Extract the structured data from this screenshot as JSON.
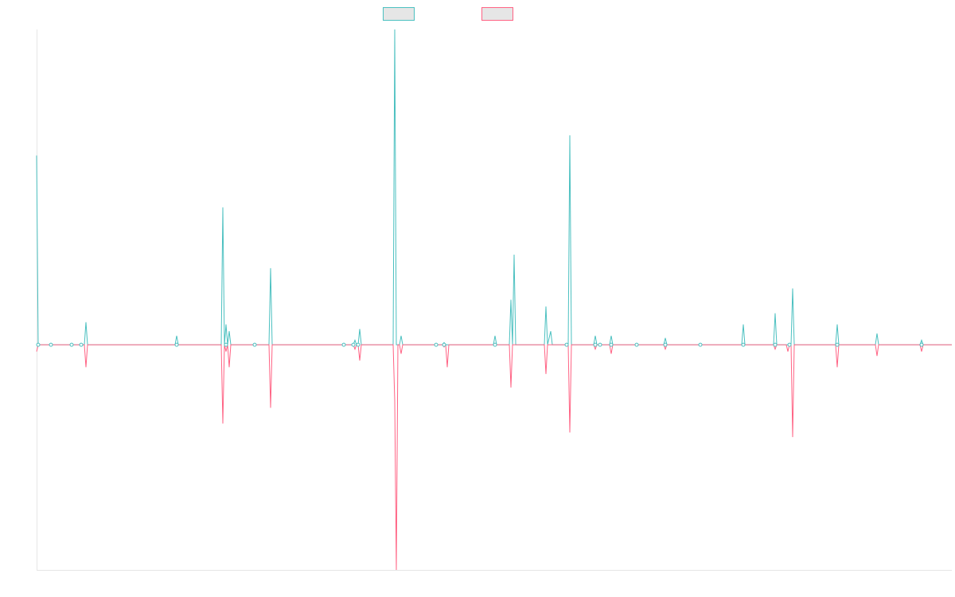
{
  "chart_data": {
    "type": "line",
    "title": "",
    "xlabel": "",
    "ylabel": "",
    "grid": false,
    "legend_placement": "top-center",
    "ylim": [
      -100,
      140
    ],
    "x_range": [
      0,
      1150
    ],
    "series": [
      {
        "color": "#4bc0c0",
        "legend_fill": "#e6e6e6",
        "points": [
          [
            0,
            84
          ],
          [
            2,
            0
          ],
          [
            18,
            0
          ],
          [
            44,
            0
          ],
          [
            56,
            0
          ],
          [
            60,
            0
          ],
          [
            62,
            10
          ],
          [
            64,
            0
          ],
          [
            174,
            0
          ],
          [
            176,
            4
          ],
          [
            178,
            0
          ],
          [
            232,
            0
          ],
          [
            234,
            61
          ],
          [
            236,
            0
          ],
          [
            238,
            9
          ],
          [
            240,
            0
          ],
          [
            242,
            6
          ],
          [
            244,
            0
          ],
          [
            272,
            0
          ],
          [
            274,
            0
          ],
          [
            292,
            0
          ],
          [
            294,
            34
          ],
          [
            296,
            0
          ],
          [
            384,
            0
          ],
          [
            386,
            0
          ],
          [
            398,
            0
          ],
          [
            400,
            2
          ],
          [
            402,
            0
          ],
          [
            404,
            0
          ],
          [
            406,
            7
          ],
          [
            408,
            0
          ],
          [
            448,
            0
          ],
          [
            450,
            140
          ],
          [
            452,
            0
          ],
          [
            454,
            0
          ],
          [
            456,
            0
          ],
          [
            458,
            4
          ],
          [
            460,
            0
          ],
          [
            500,
            0
          ],
          [
            502,
            0
          ],
          [
            510,
            0
          ],
          [
            512,
            1
          ],
          [
            514,
            0
          ],
          [
            516,
            0
          ],
          [
            574,
            0
          ],
          [
            576,
            4
          ],
          [
            578,
            0
          ],
          [
            594,
            0
          ],
          [
            596,
            20
          ],
          [
            598,
            0
          ],
          [
            600,
            40
          ],
          [
            602,
            0
          ],
          [
            638,
            0
          ],
          [
            640,
            17
          ],
          [
            642,
            0
          ],
          [
            646,
            6
          ],
          [
            648,
            0
          ],
          [
            664,
            0
          ],
          [
            666,
            0
          ],
          [
            668,
            0
          ],
          [
            670,
            93
          ],
          [
            672,
            0
          ],
          [
            700,
            0
          ],
          [
            702,
            4
          ],
          [
            704,
            0
          ],
          [
            706,
            0
          ],
          [
            708,
            0
          ],
          [
            720,
            0
          ],
          [
            722,
            4
          ],
          [
            724,
            0
          ],
          [
            752,
            0
          ],
          [
            754,
            0
          ],
          [
            788,
            0
          ],
          [
            790,
            3
          ],
          [
            792,
            0
          ],
          [
            834,
            0
          ],
          [
            886,
            0
          ],
          [
            888,
            9
          ],
          [
            890,
            0
          ],
          [
            926,
            0
          ],
          [
            928,
            14
          ],
          [
            930,
            0
          ],
          [
            942,
            0
          ],
          [
            944,
            0
          ],
          [
            946,
            0
          ],
          [
            948,
            0
          ],
          [
            950,
            25
          ],
          [
            952,
            0
          ],
          [
            1004,
            0
          ],
          [
            1006,
            9
          ],
          [
            1008,
            0
          ],
          [
            1054,
            0
          ],
          [
            1056,
            5
          ],
          [
            1058,
            0
          ],
          [
            1110,
            0
          ],
          [
            1112,
            2
          ],
          [
            1114,
            0
          ],
          [
            1150,
            0
          ]
        ],
        "markers": [
          2,
          18,
          44,
          56,
          176,
          238,
          274,
          386,
          398,
          404,
          502,
          512,
          576,
          666,
          702,
          708,
          722,
          754,
          790,
          834,
          888,
          928,
          946,
          1006,
          1112
        ]
      },
      {
        "color": "#ff6384",
        "legend_fill": "#e6e6e6",
        "points": [
          [
            0,
            -3
          ],
          [
            2,
            0
          ],
          [
            18,
            0
          ],
          [
            44,
            0
          ],
          [
            56,
            0
          ],
          [
            60,
            0
          ],
          [
            62,
            -10
          ],
          [
            64,
            0
          ],
          [
            174,
            0
          ],
          [
            232,
            0
          ],
          [
            234,
            -35
          ],
          [
            236,
            0
          ],
          [
            238,
            -3
          ],
          [
            240,
            0
          ],
          [
            242,
            -10
          ],
          [
            244,
            0
          ],
          [
            272,
            0
          ],
          [
            274,
            0
          ],
          [
            292,
            0
          ],
          [
            294,
            -28
          ],
          [
            296,
            0
          ],
          [
            384,
            0
          ],
          [
            398,
            0
          ],
          [
            400,
            -2
          ],
          [
            402,
            0
          ],
          [
            404,
            0
          ],
          [
            406,
            -7
          ],
          [
            408,
            0
          ],
          [
            448,
            0
          ],
          [
            450,
            -25
          ],
          [
            452,
            -100
          ],
          [
            454,
            0
          ],
          [
            456,
            0
          ],
          [
            458,
            -4
          ],
          [
            460,
            0
          ],
          [
            500,
            0
          ],
          [
            502,
            0
          ],
          [
            510,
            0
          ],
          [
            512,
            -1
          ],
          [
            514,
            0
          ],
          [
            516,
            -10
          ],
          [
            518,
            0
          ],
          [
            574,
            0
          ],
          [
            594,
            0
          ],
          [
            596,
            -19
          ],
          [
            598,
            0
          ],
          [
            602,
            0
          ],
          [
            638,
            0
          ],
          [
            640,
            -13
          ],
          [
            642,
            0
          ],
          [
            666,
            0
          ],
          [
            668,
            0
          ],
          [
            670,
            -39
          ],
          [
            672,
            0
          ],
          [
            700,
            0
          ],
          [
            702,
            -2
          ],
          [
            704,
            0
          ],
          [
            708,
            0
          ],
          [
            720,
            0
          ],
          [
            722,
            -4
          ],
          [
            724,
            0
          ],
          [
            752,
            0
          ],
          [
            788,
            0
          ],
          [
            790,
            -2
          ],
          [
            792,
            0
          ],
          [
            834,
            0
          ],
          [
            886,
            0
          ],
          [
            888,
            0
          ],
          [
            926,
            0
          ],
          [
            928,
            -2
          ],
          [
            930,
            0
          ],
          [
            942,
            0
          ],
          [
            944,
            -3
          ],
          [
            946,
            0
          ],
          [
            948,
            0
          ],
          [
            950,
            -41
          ],
          [
            952,
            0
          ],
          [
            1004,
            0
          ],
          [
            1006,
            -10
          ],
          [
            1008,
            0
          ],
          [
            1054,
            0
          ],
          [
            1056,
            -5
          ],
          [
            1058,
            0
          ],
          [
            1110,
            0
          ],
          [
            1112,
            -3
          ],
          [
            1114,
            0
          ],
          [
            1150,
            0
          ]
        ]
      }
    ]
  }
}
